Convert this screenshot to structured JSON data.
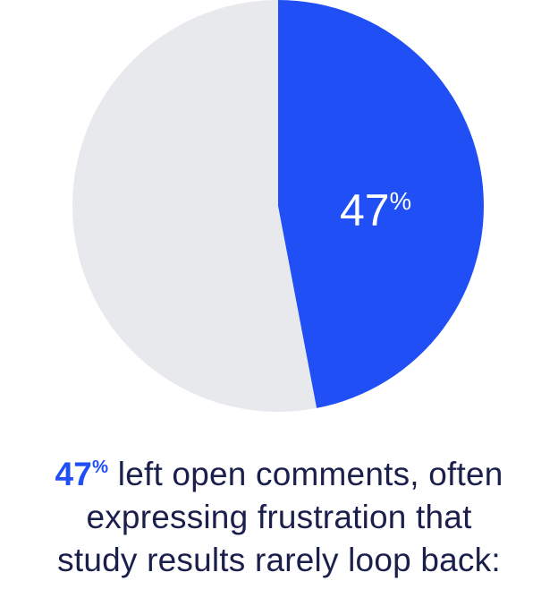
{
  "chart_data": {
    "type": "pie",
    "slices": [
      {
        "value": 47,
        "color": "#1f4ff5",
        "label_number": "47",
        "label_unit": "%"
      },
      {
        "value": 53,
        "color": "#e8e9ec"
      }
    ]
  },
  "caption": {
    "stat_number": "47",
    "stat_unit": "%",
    "line1_rest": " left open comments, often",
    "line2": "expressing frustration that",
    "line3": "study results rarely loop back:"
  }
}
